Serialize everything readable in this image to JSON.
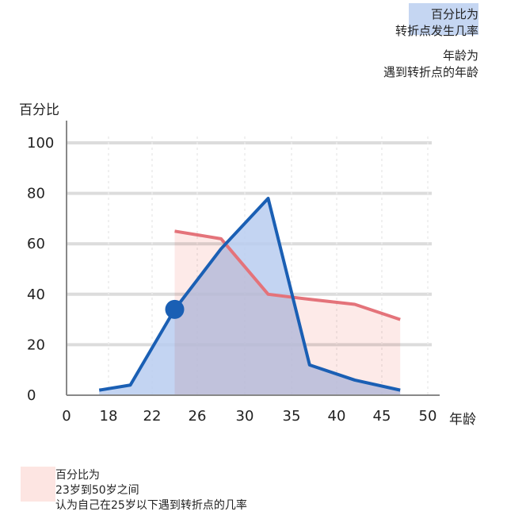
{
  "legend": {
    "series_a_line1": "百分比为",
    "series_a_line2": "转折点发生几率",
    "series_b_line1": "年龄为",
    "series_b_line2": "遇到转折点的年龄",
    "band_line1": "百分比为",
    "band_line2": "23岁到50岁之间",
    "band_line3": "认为自己在25岁以下遇到转折点的几率"
  },
  "colors": {
    "blue_line": "#1a5fb4",
    "blue_fill": "#b8cdf0",
    "red_line": "#e4737a",
    "red_fill": "#fcdcd8",
    "grid": "#dcdcdc",
    "axis": "#888888"
  },
  "chart_data": {
    "type": "line",
    "xlabel": "年龄",
    "ylabel": "百分比",
    "x_ticks": [
      "0",
      "18",
      "22",
      "26",
      "30",
      "35",
      "40",
      "45",
      "50"
    ],
    "y_ticks": [
      "0",
      "20",
      "40",
      "60",
      "80",
      "100"
    ],
    "ylim": [
      0,
      100
    ],
    "grid": true,
    "series": [
      {
        "color": "blue",
        "x": [
          "14",
          "20",
          "24",
          "28",
          "32.5",
          "37",
          "42",
          "47"
        ],
        "values": [
          2,
          4,
          34,
          58,
          78,
          12,
          6,
          2
        ],
        "marker": {
          "x": "24",
          "value": 34
        }
      },
      {
        "color": "red",
        "x": [
          "24",
          "28",
          "32.5",
          "37",
          "42",
          "47"
        ],
        "values": [
          65,
          62,
          40,
          38,
          36,
          30
        ]
      }
    ]
  }
}
